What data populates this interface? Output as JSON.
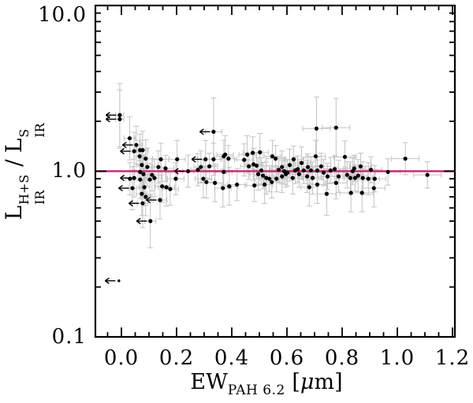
{
  "chart_data": {
    "type": "scatter",
    "title": "",
    "xlabel": {
      "main": "EW",
      "sub": "PAH 6.2",
      "open": " [",
      "mu": "μ",
      "close": "m]"
    },
    "ylabel": {
      "sym1": "L",
      "sup1": "H+S",
      "sub1": "IR",
      "slash": "/",
      "sym2": "L",
      "sup2": "S",
      "sub2": "IR"
    },
    "xlim": [
      -0.095,
      1.21
    ],
    "ylim_log": [
      0.1,
      10.0
    ],
    "grid": false,
    "legend": null,
    "xticks": {
      "major_values": [
        0.0,
        0.2,
        0.4,
        0.6,
        0.8,
        1.0,
        1.2
      ],
      "labels": [
        "0.0",
        "0.2",
        "0.4",
        "0.6",
        "0.8",
        "1.0",
        "1.2"
      ],
      "minor_step": 0.05
    },
    "yticks": {
      "major_values": [
        0.1,
        1.0,
        10.0
      ],
      "labels": [
        "10.0",
        "1.0",
        "0.1"
      ],
      "minor_values": [
        0.2,
        0.3,
        0.4,
        0.5,
        0.6,
        0.7,
        0.8,
        0.9,
        2,
        3,
        4,
        5,
        6,
        7,
        8,
        9
      ]
    },
    "ref_line": {
      "y": 1.0,
      "color": "#cb2a76"
    },
    "colors": {
      "point": "#000000",
      "error_bar": "#c3c3c3",
      "frame": "#000000"
    },
    "point_legend": "each point = [EW_PAH6.2, L_ratio, x_err, y_err_factor, flag(0=normal,1=left-arrow-limit,2=arrow-only)]",
    "points": [
      [
        -0.006,
        2.18,
        0.015,
        1.55,
        1
      ],
      [
        -0.006,
        2.06,
        0.015,
        1.5,
        1
      ],
      [
        0.03,
        1.58,
        0.02,
        1.35,
        0
      ],
      [
        0.054,
        1.44,
        0.02,
        1.3,
        1
      ],
      [
        0.046,
        1.32,
        0.015,
        1.3,
        1
      ],
      [
        0.068,
        1.34,
        0.02,
        1.25,
        0
      ],
      [
        0.077,
        1.34,
        0.02,
        1.3,
        0
      ],
      [
        0.066,
        1.23,
        0.02,
        1.25,
        0
      ],
      [
        0.088,
        1.19,
        0.025,
        1.3,
        0
      ],
      [
        0.074,
        1.09,
        0.02,
        1.25,
        0
      ],
      [
        0.094,
        1.06,
        0.02,
        1.3,
        0
      ],
      [
        0.143,
        1.18,
        0.03,
        1.25,
        0
      ],
      [
        0.202,
        1.18,
        0.03,
        1.3,
        0
      ],
      [
        0.134,
        1.06,
        0.025,
        1.25,
        0
      ],
      [
        0.16,
        1.04,
        0.03,
        1.2,
        0
      ],
      [
        0.068,
        0.99,
        0.02,
        1.25,
        0
      ],
      [
        0.08,
        0.96,
        0.02,
        1.3,
        0
      ],
      [
        0.111,
        0.95,
        0.025,
        1.25,
        0
      ],
      [
        0.12,
        0.91,
        0.025,
        1.3,
        0
      ],
      [
        0.103,
        0.89,
        0.02,
        1.25,
        0
      ],
      [
        0.046,
        0.91,
        0.015,
        1.3,
        1
      ],
      [
        0.031,
        0.9,
        0.015,
        1.25,
        0
      ],
      [
        0.068,
        0.89,
        0.02,
        1.3,
        0
      ],
      [
        0.197,
        0.9,
        0.03,
        1.25,
        0
      ],
      [
        0.242,
        1.0,
        0.02,
        1.25,
        1
      ],
      [
        0.04,
        0.79,
        0.015,
        1.35,
        1
      ],
      [
        0.083,
        0.8,
        0.02,
        1.3,
        0
      ],
      [
        0.148,
        0.81,
        0.025,
        1.25,
        0
      ],
      [
        0.163,
        0.8,
        0.03,
        1.3,
        0
      ],
      [
        0.177,
        0.78,
        0.03,
        1.25,
        0
      ],
      [
        0.074,
        0.73,
        0.02,
        1.35,
        0
      ],
      [
        0.088,
        0.7,
        0.02,
        1.3,
        0
      ],
      [
        0.077,
        0.64,
        0.02,
        1.4,
        1
      ],
      [
        0.14,
        0.67,
        0.025,
        1.3,
        1
      ],
      [
        0.105,
        0.5,
        0.02,
        1.45,
        1
      ],
      [
        -0.009,
        0.218,
        0,
        1,
        2
      ],
      [
        0.334,
        1.73,
        0.03,
        1.6,
        1
      ],
      [
        0.305,
        1.18,
        0.03,
        1.3,
        1
      ],
      [
        0.334,
        1.18,
        0.03,
        1.25,
        0
      ],
      [
        0.288,
        1.06,
        0.025,
        1.25,
        0
      ],
      [
        0.319,
        1.07,
        0.03,
        1.2,
        0
      ],
      [
        0.277,
        1.02,
        0.025,
        1.25,
        0
      ],
      [
        0.297,
        0.9,
        0.03,
        1.3,
        0
      ],
      [
        0.308,
        0.86,
        0.03,
        1.25,
        0
      ],
      [
        0.339,
        0.85,
        0.03,
        1.3,
        0
      ],
      [
        0.368,
        0.79,
        0.03,
        1.3,
        0
      ],
      [
        0.371,
        1.23,
        0.035,
        1.25,
        0
      ],
      [
        0.388,
        1.19,
        0.03,
        1.2,
        0
      ],
      [
        0.391,
        0.81,
        0.03,
        1.3,
        0
      ],
      [
        0.419,
        0.83,
        0.035,
        1.25,
        0
      ],
      [
        0.371,
        0.99,
        0.03,
        1.2,
        0
      ],
      [
        0.445,
        1.17,
        0.035,
        1.25,
        0
      ],
      [
        0.456,
        1.26,
        0.03,
        1.3,
        0
      ],
      [
        0.476,
        1.29,
        0.035,
        1.25,
        0
      ],
      [
        0.502,
        1.3,
        0.03,
        1.3,
        0
      ],
      [
        0.462,
        1.07,
        0.03,
        1.2,
        0
      ],
      [
        0.479,
        1.1,
        0.03,
        1.25,
        0
      ],
      [
        0.49,
        1.08,
        0.035,
        1.2,
        0
      ],
      [
        0.507,
        1.01,
        0.03,
        1.2,
        0
      ],
      [
        0.496,
        0.96,
        0.03,
        1.25,
        0
      ],
      [
        0.513,
        0.94,
        0.035,
        1.2,
        0
      ],
      [
        0.525,
        0.91,
        0.03,
        1.25,
        0
      ],
      [
        0.536,
        0.9,
        0.035,
        1.2,
        0
      ],
      [
        0.547,
        1.23,
        0.03,
        1.25,
        0
      ],
      [
        0.559,
        1.19,
        0.035,
        1.2,
        0
      ],
      [
        0.57,
        1.02,
        0.03,
        1.2,
        0
      ],
      [
        0.582,
        1.06,
        0.035,
        1.25,
        0
      ],
      [
        0.59,
        1.0,
        0.03,
        1.2,
        0
      ],
      [
        0.602,
        0.98,
        0.035,
        1.2,
        0
      ],
      [
        0.582,
        0.93,
        0.03,
        1.25,
        0
      ],
      [
        0.562,
        0.9,
        0.035,
        1.2,
        0
      ],
      [
        0.545,
        0.86,
        0.03,
        1.25,
        0
      ],
      [
        0.519,
        0.83,
        0.03,
        1.3,
        0
      ],
      [
        0.482,
        0.82,
        0.035,
        1.25,
        0
      ],
      [
        0.376,
        1.26,
        0.03,
        1.3,
        0
      ],
      [
        0.596,
        0.96,
        0.035,
        1.2,
        0
      ],
      [
        0.61,
        1.09,
        0.03,
        1.25,
        0
      ],
      [
        0.624,
        1.18,
        0.035,
        1.2,
        0
      ],
      [
        0.63,
        1.01,
        0.03,
        1.2,
        0
      ],
      [
        0.621,
        0.91,
        0.035,
        1.25,
        0
      ],
      [
        0.639,
        1.03,
        0.03,
        1.2,
        0
      ],
      [
        0.644,
        0.96,
        0.035,
        1.2,
        0
      ],
      [
        0.653,
        1.12,
        0.03,
        1.25,
        0
      ],
      [
        0.661,
        1.01,
        0.035,
        1.2,
        0
      ],
      [
        0.673,
        0.93,
        0.03,
        1.25,
        0
      ],
      [
        0.676,
        1.06,
        0.035,
        1.2,
        0
      ],
      [
        0.687,
        1.01,
        0.03,
        1.2,
        0
      ],
      [
        0.693,
        0.91,
        0.035,
        1.25,
        0
      ],
      [
        0.704,
        1.23,
        0.035,
        1.25,
        0
      ],
      [
        0.71,
        1.01,
        0.03,
        1.2,
        0
      ],
      [
        0.724,
        1.07,
        0.035,
        1.2,
        0
      ],
      [
        0.733,
        0.98,
        0.03,
        1.2,
        0
      ],
      [
        0.71,
        0.83,
        0.035,
        1.3,
        0
      ],
      [
        0.681,
        0.8,
        0.03,
        1.3,
        0
      ],
      [
        0.747,
        0.93,
        0.035,
        1.2,
        0
      ],
      [
        0.758,
        1.01,
        0.035,
        1.2,
        0
      ],
      [
        0.773,
        1.03,
        0.04,
        1.2,
        0
      ],
      [
        0.787,
        0.93,
        0.035,
        1.25,
        0
      ],
      [
        0.81,
        1.22,
        0.04,
        1.25,
        0
      ],
      [
        0.818,
        0.95,
        0.035,
        1.2,
        0
      ],
      [
        0.83,
        0.91,
        0.04,
        1.25,
        0
      ],
      [
        0.838,
        1.0,
        0.035,
        1.2,
        0
      ],
      [
        0.847,
        0.91,
        0.04,
        1.2,
        0
      ],
      [
        0.858,
        0.94,
        0.035,
        1.25,
        0
      ],
      [
        0.867,
        1.07,
        0.04,
        1.2,
        0
      ],
      [
        0.875,
        0.91,
        0.035,
        1.25,
        0
      ],
      [
        0.744,
        0.73,
        0.035,
        1.35,
        0
      ],
      [
        0.872,
        0.74,
        0.04,
        1.3,
        0
      ],
      [
        0.707,
        1.81,
        0.05,
        1.55,
        0
      ],
      [
        0.778,
        1.83,
        0.05,
        1.5,
        0
      ],
      [
        0.904,
        1.02,
        0.04,
        1.2,
        0
      ],
      [
        0.778,
        0.85,
        0.04,
        1.25,
        0
      ],
      [
        0.895,
        0.9,
        0.04,
        1.25,
        0
      ],
      [
        0.918,
        0.9,
        0.04,
        1.2,
        0
      ],
      [
        0.966,
        0.99,
        0.045,
        1.2,
        0
      ],
      [
        1.029,
        1.19,
        0.05,
        1.25,
        0
      ],
      [
        1.109,
        0.95,
        0.05,
        1.2,
        0
      ],
      [
        0.832,
        0.74,
        0.04,
        1.3,
        0
      ],
      [
        0.915,
        0.79,
        0.04,
        1.3,
        0
      ],
      [
        0.844,
        1.04,
        0.04,
        1.2,
        0
      ]
    ]
  }
}
